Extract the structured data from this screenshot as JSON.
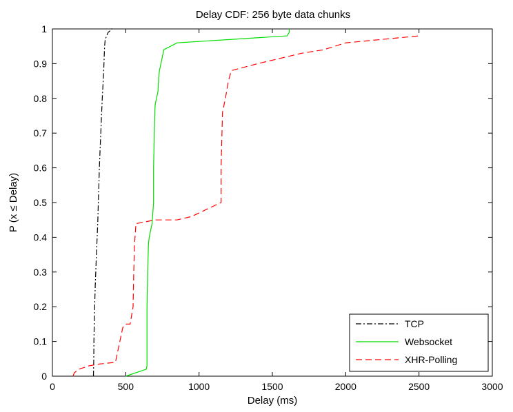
{
  "chart_data": {
    "type": "line",
    "title": "Delay CDF: 256 byte data chunks",
    "xlabel": "Delay (ms)",
    "ylabel": "P (x ≤ Delay)",
    "xlim": [
      0,
      3000
    ],
    "ylim": [
      0,
      1
    ],
    "xticks": [
      "0",
      "500",
      "1000",
      "1500",
      "2000",
      "2500",
      "3000"
    ],
    "yticks": [
      "0",
      "0.1",
      "0.2",
      "0.3",
      "0.4",
      "0.5",
      "0.6",
      "0.7",
      "0.8",
      "0.9",
      "1"
    ],
    "grid": false,
    "legend_position": "bottom-right",
    "series": [
      {
        "name": "TCP",
        "color": "#000000",
        "dash": "dash-dot",
        "x": [
          280,
          282,
          283,
          285,
          287,
          290,
          292,
          296,
          300,
          305,
          310,
          313,
          317,
          320,
          325,
          330,
          335,
          338,
          340,
          345,
          350,
          353,
          356,
          360,
          370,
          380,
          395,
          400,
          405,
          410
        ],
        "y": [
          0,
          0.05,
          0.1,
          0.14,
          0.18,
          0.23,
          0.26,
          0.3,
          0.35,
          0.4,
          0.45,
          0.5,
          0.55,
          0.6,
          0.65,
          0.7,
          0.75,
          0.78,
          0.8,
          0.84,
          0.88,
          0.92,
          0.95,
          0.97,
          0.98,
          0.99,
          0.995,
          1,
          1,
          1
        ]
      },
      {
        "name": "Websocket",
        "color": "#00dd00",
        "dash": "solid",
        "x": [
          500,
          640,
          645,
          645,
          650,
          655,
          660,
          670,
          680,
          690,
          690,
          695,
          700,
          705,
          710,
          720,
          725,
          730,
          740,
          760,
          850,
          1600,
          1615,
          1615
        ],
        "y": [
          0,
          0.02,
          0.03,
          0.2,
          0.3,
          0.38,
          0.4,
          0.42,
          0.44,
          0.5,
          0.6,
          0.7,
          0.78,
          0.79,
          0.8,
          0.82,
          0.86,
          0.88,
          0.9,
          0.94,
          0.96,
          0.98,
          0.99,
          1
        ]
      },
      {
        "name": "XHR-Polling",
        "color": "#ff0000",
        "dash": "dashed",
        "x": [
          140,
          150,
          180,
          250,
          320,
          430,
          460,
          480,
          490,
          500,
          530,
          550,
          555,
          560,
          570,
          580,
          700,
          850,
          950,
          1100,
          1150,
          1150,
          1160,
          1180,
          1200,
          1220,
          1400,
          1700,
          1850,
          2000,
          2500
        ],
        "y": [
          0,
          0.01,
          0.02,
          0.03,
          0.035,
          0.04,
          0.1,
          0.14,
          0.145,
          0.15,
          0.15,
          0.2,
          0.3,
          0.38,
          0.44,
          0.44,
          0.45,
          0.45,
          0.46,
          0.49,
          0.5,
          0.6,
          0.76,
          0.8,
          0.85,
          0.88,
          0.9,
          0.93,
          0.94,
          0.96,
          0.98
        ]
      }
    ]
  }
}
